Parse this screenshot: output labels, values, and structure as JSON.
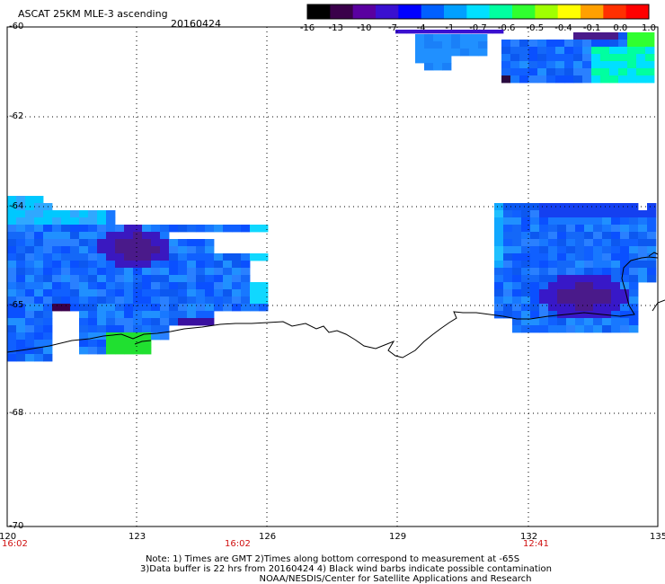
{
  "title": "ASCAT 25KM MLE-3 ascending",
  "date": "20160424",
  "colorbar": {
    "labels": [
      "-16",
      "-13",
      "-10",
      "-7",
      "-4",
      "-1",
      "-0.7",
      "-0.6",
      "-0.5",
      "-0.4",
      "-0.1",
      "0.0",
      "1.0"
    ],
    "colors": [
      "#000000",
      "#3a004a",
      "#5a00a0",
      "#3a10d0",
      "#0000ff",
      "#0060ff",
      "#00a0ff",
      "#00e0ff",
      "#00ffa0",
      "#30ff30",
      "#a0ff00",
      "#ffff00",
      "#ffa000",
      "#ff3000",
      "#ff0000"
    ]
  },
  "axes": {
    "lat_labels": [
      "-60",
      "-62",
      "-64",
      "-65",
      "-68",
      "-70"
    ],
    "lon_labels": [
      "120",
      "123",
      "126",
      "129",
      "132",
      "135"
    ],
    "time_labels": [
      "16:02",
      "16:02",
      "12:41"
    ]
  },
  "note": {
    "line1": "Note: 1) Times are GMT 2)Times along bottom correspond to measurement at -65S",
    "line2": "3)Data buffer is 22 hrs from 20160424 4) Black wind barbs indicate possible contamination",
    "line3": "NOAA/NESDIS/Center for Satellite Applications and Research"
  },
  "map_data": {
    "grid": "dotted",
    "lon_range": [
      120,
      135
    ],
    "lat_range": [
      -70,
      -60
    ],
    "lat_ticks": [
      -60,
      -62,
      -64,
      -65,
      -68,
      -70
    ],
    "lon_ticks": [
      120,
      123,
      126,
      129,
      132,
      135
    ],
    "swaths": [
      {
        "name": "left-swath",
        "dominant_color": "#1060ff",
        "feature": "purple patch near 122.7E -64.6S, green cells near 122.5E -66.4S"
      },
      {
        "name": "top-right-swath",
        "dominant_color": "#1070ff",
        "feature": "green cells near 134.5E -60.4S"
      },
      {
        "name": "right-swath",
        "dominant_color": "#1840f0",
        "feature": "purple patch near 133.3E -65.8S"
      }
    ]
  }
}
